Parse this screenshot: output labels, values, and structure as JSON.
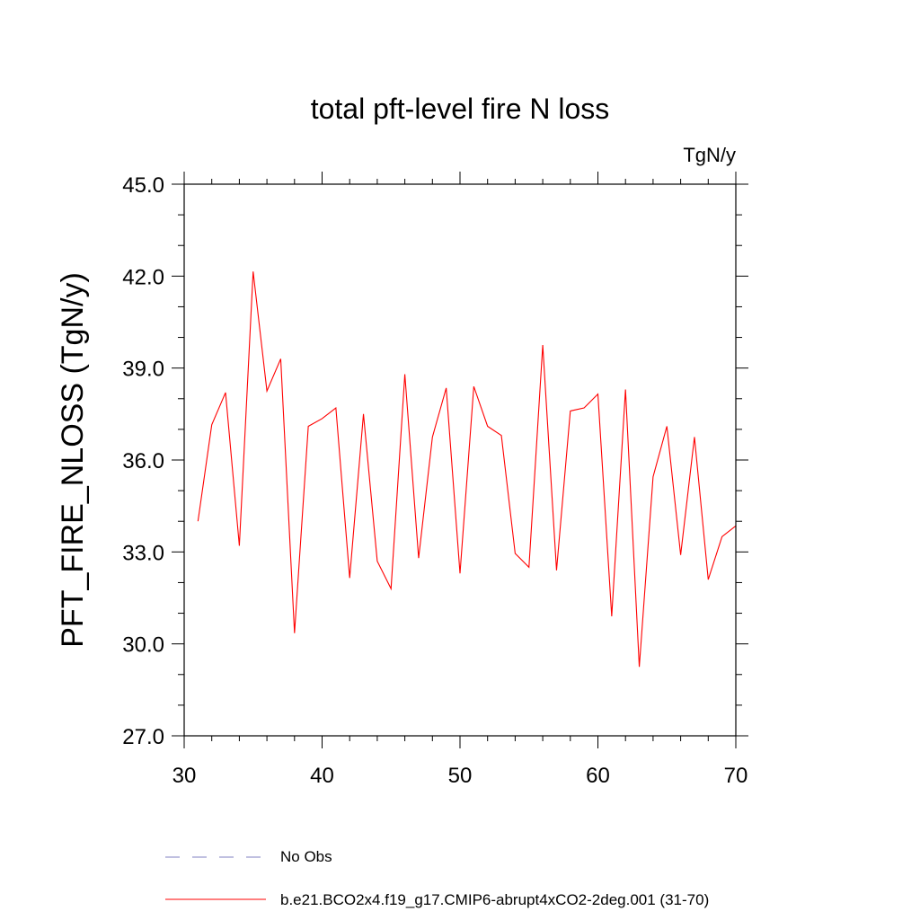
{
  "chart_data": {
    "type": "line",
    "title": "total pft-level fire N loss",
    "units_label": "TgN/y",
    "xlabel": "",
    "ylabel": "PFT_FIRE_NLOSS  (TgN/y)",
    "xlim": [
      30,
      70
    ],
    "ylim": [
      27.0,
      45.0
    ],
    "xticks": [
      30,
      40,
      50,
      60,
      70
    ],
    "xtick_labels": [
      "30",
      "40",
      "50",
      "60",
      "70"
    ],
    "yticks": [
      27.0,
      30.0,
      33.0,
      36.0,
      39.0,
      42.0,
      45.0
    ],
    "ytick_labels": [
      "27.0",
      "30.0",
      "33.0",
      "36.0",
      "39.0",
      "42.0",
      "45.0"
    ],
    "grid": false,
    "legend_position": "bottom",
    "series": [
      {
        "name": "b.e21.BCO2x4.f19_g17.CMIP6-abrupt4xCO2-2deg.001 (31-70)",
        "color": "#ff0000",
        "style": "solid",
        "x": [
          31,
          32,
          33,
          34,
          35,
          36,
          37,
          38,
          39,
          40,
          41,
          42,
          43,
          44,
          45,
          46,
          47,
          48,
          49,
          50,
          51,
          52,
          53,
          54,
          55,
          56,
          57,
          58,
          59,
          60,
          61,
          62,
          63,
          64,
          65,
          66,
          67,
          68,
          69,
          70
        ],
        "values": [
          34.0,
          37.15,
          38.2,
          33.2,
          42.15,
          38.25,
          39.3,
          30.35,
          37.1,
          37.35,
          37.7,
          32.15,
          37.5,
          32.7,
          31.8,
          38.8,
          32.8,
          36.75,
          38.35,
          32.3,
          38.4,
          37.1,
          36.8,
          32.95,
          32.5,
          39.75,
          32.4,
          37.6,
          37.7,
          38.15,
          30.9,
          38.3,
          29.25,
          35.45,
          37.1,
          32.9,
          36.75,
          32.1,
          33.5,
          33.85
        ]
      }
    ],
    "legend": [
      {
        "label": "No Obs",
        "color": "#8080c0",
        "style": "dashed"
      },
      {
        "label": "b.e21.BCO2x4.f19_g17.CMIP6-abrupt4xCO2-2deg.001 (31-70)",
        "color": "#ff0000",
        "style": "solid"
      }
    ]
  }
}
